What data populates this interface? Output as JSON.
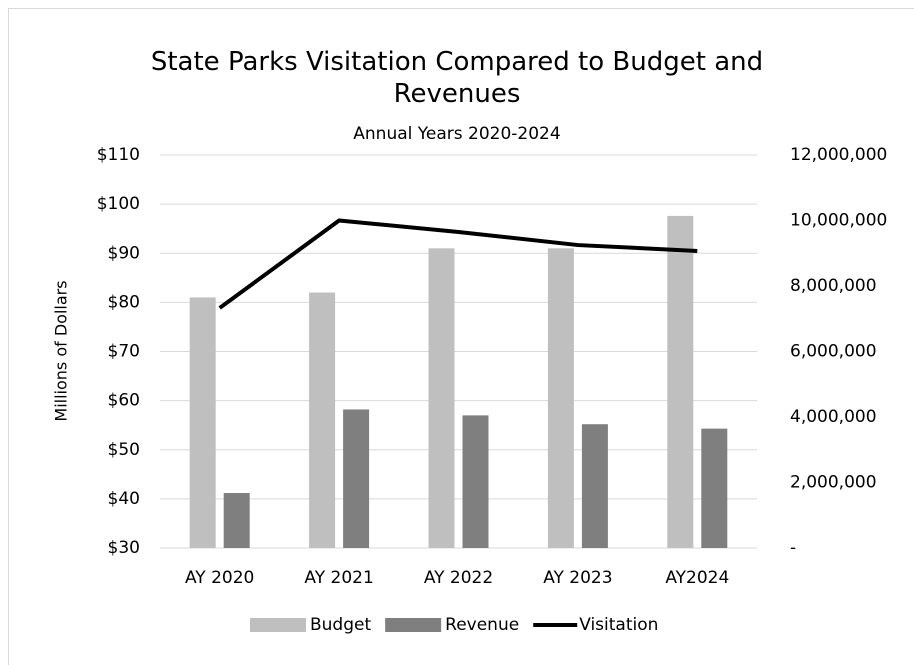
{
  "chart_data": {
    "type": "bar_line",
    "title": "State Parks Visitation Compared to Budget and Revenues",
    "subtitle": "Annual Years 2020-2024",
    "ylabel": "Millions of Dollars",
    "categories": [
      "AY 2020",
      "AY 2021",
      "AY 2022",
      "AY 2023",
      "AY2024"
    ],
    "series": [
      {
        "name": "Budget",
        "type": "bar",
        "color": "#bfbfbf",
        "values": [
          81,
          82,
          91,
          91,
          97.6
        ]
      },
      {
        "name": "Revenue",
        "type": "bar",
        "color": "#7f7f7f",
        "values": [
          41.2,
          58.2,
          57,
          55.2,
          54.3
        ]
      },
      {
        "name": "Visitation",
        "type": "line",
        "color": "#000000",
        "axis": "y2",
        "values": [
          7330000,
          10000000,
          9650000,
          9250000,
          9070000
        ]
      }
    ],
    "ylim": [
      30,
      110
    ],
    "yticks": [
      {
        "value": 30,
        "label": "$30"
      },
      {
        "value": 40,
        "label": "$40"
      },
      {
        "value": 50,
        "label": "$50"
      },
      {
        "value": 60,
        "label": "$60"
      },
      {
        "value": 70,
        "label": "$70"
      },
      {
        "value": 80,
        "label": "$80"
      },
      {
        "value": 90,
        "label": "$90"
      },
      {
        "value": 100,
        "label": "$100"
      },
      {
        "value": 110,
        "label": "$110"
      }
    ],
    "y2lim": [
      0,
      12000000
    ],
    "y2ticks": [
      {
        "value": 0,
        "label": "-"
      },
      {
        "value": 2000000,
        "label": "2,000,000"
      },
      {
        "value": 4000000,
        "label": "4,000,000"
      },
      {
        "value": 6000000,
        "label": "6,000,000"
      },
      {
        "value": 8000000,
        "label": "8,000,000"
      },
      {
        "value": 10000000,
        "label": "10,000,000"
      },
      {
        "value": 12000000,
        "label": "12,000,000"
      }
    ],
    "grid": true,
    "legend": "bottom"
  }
}
